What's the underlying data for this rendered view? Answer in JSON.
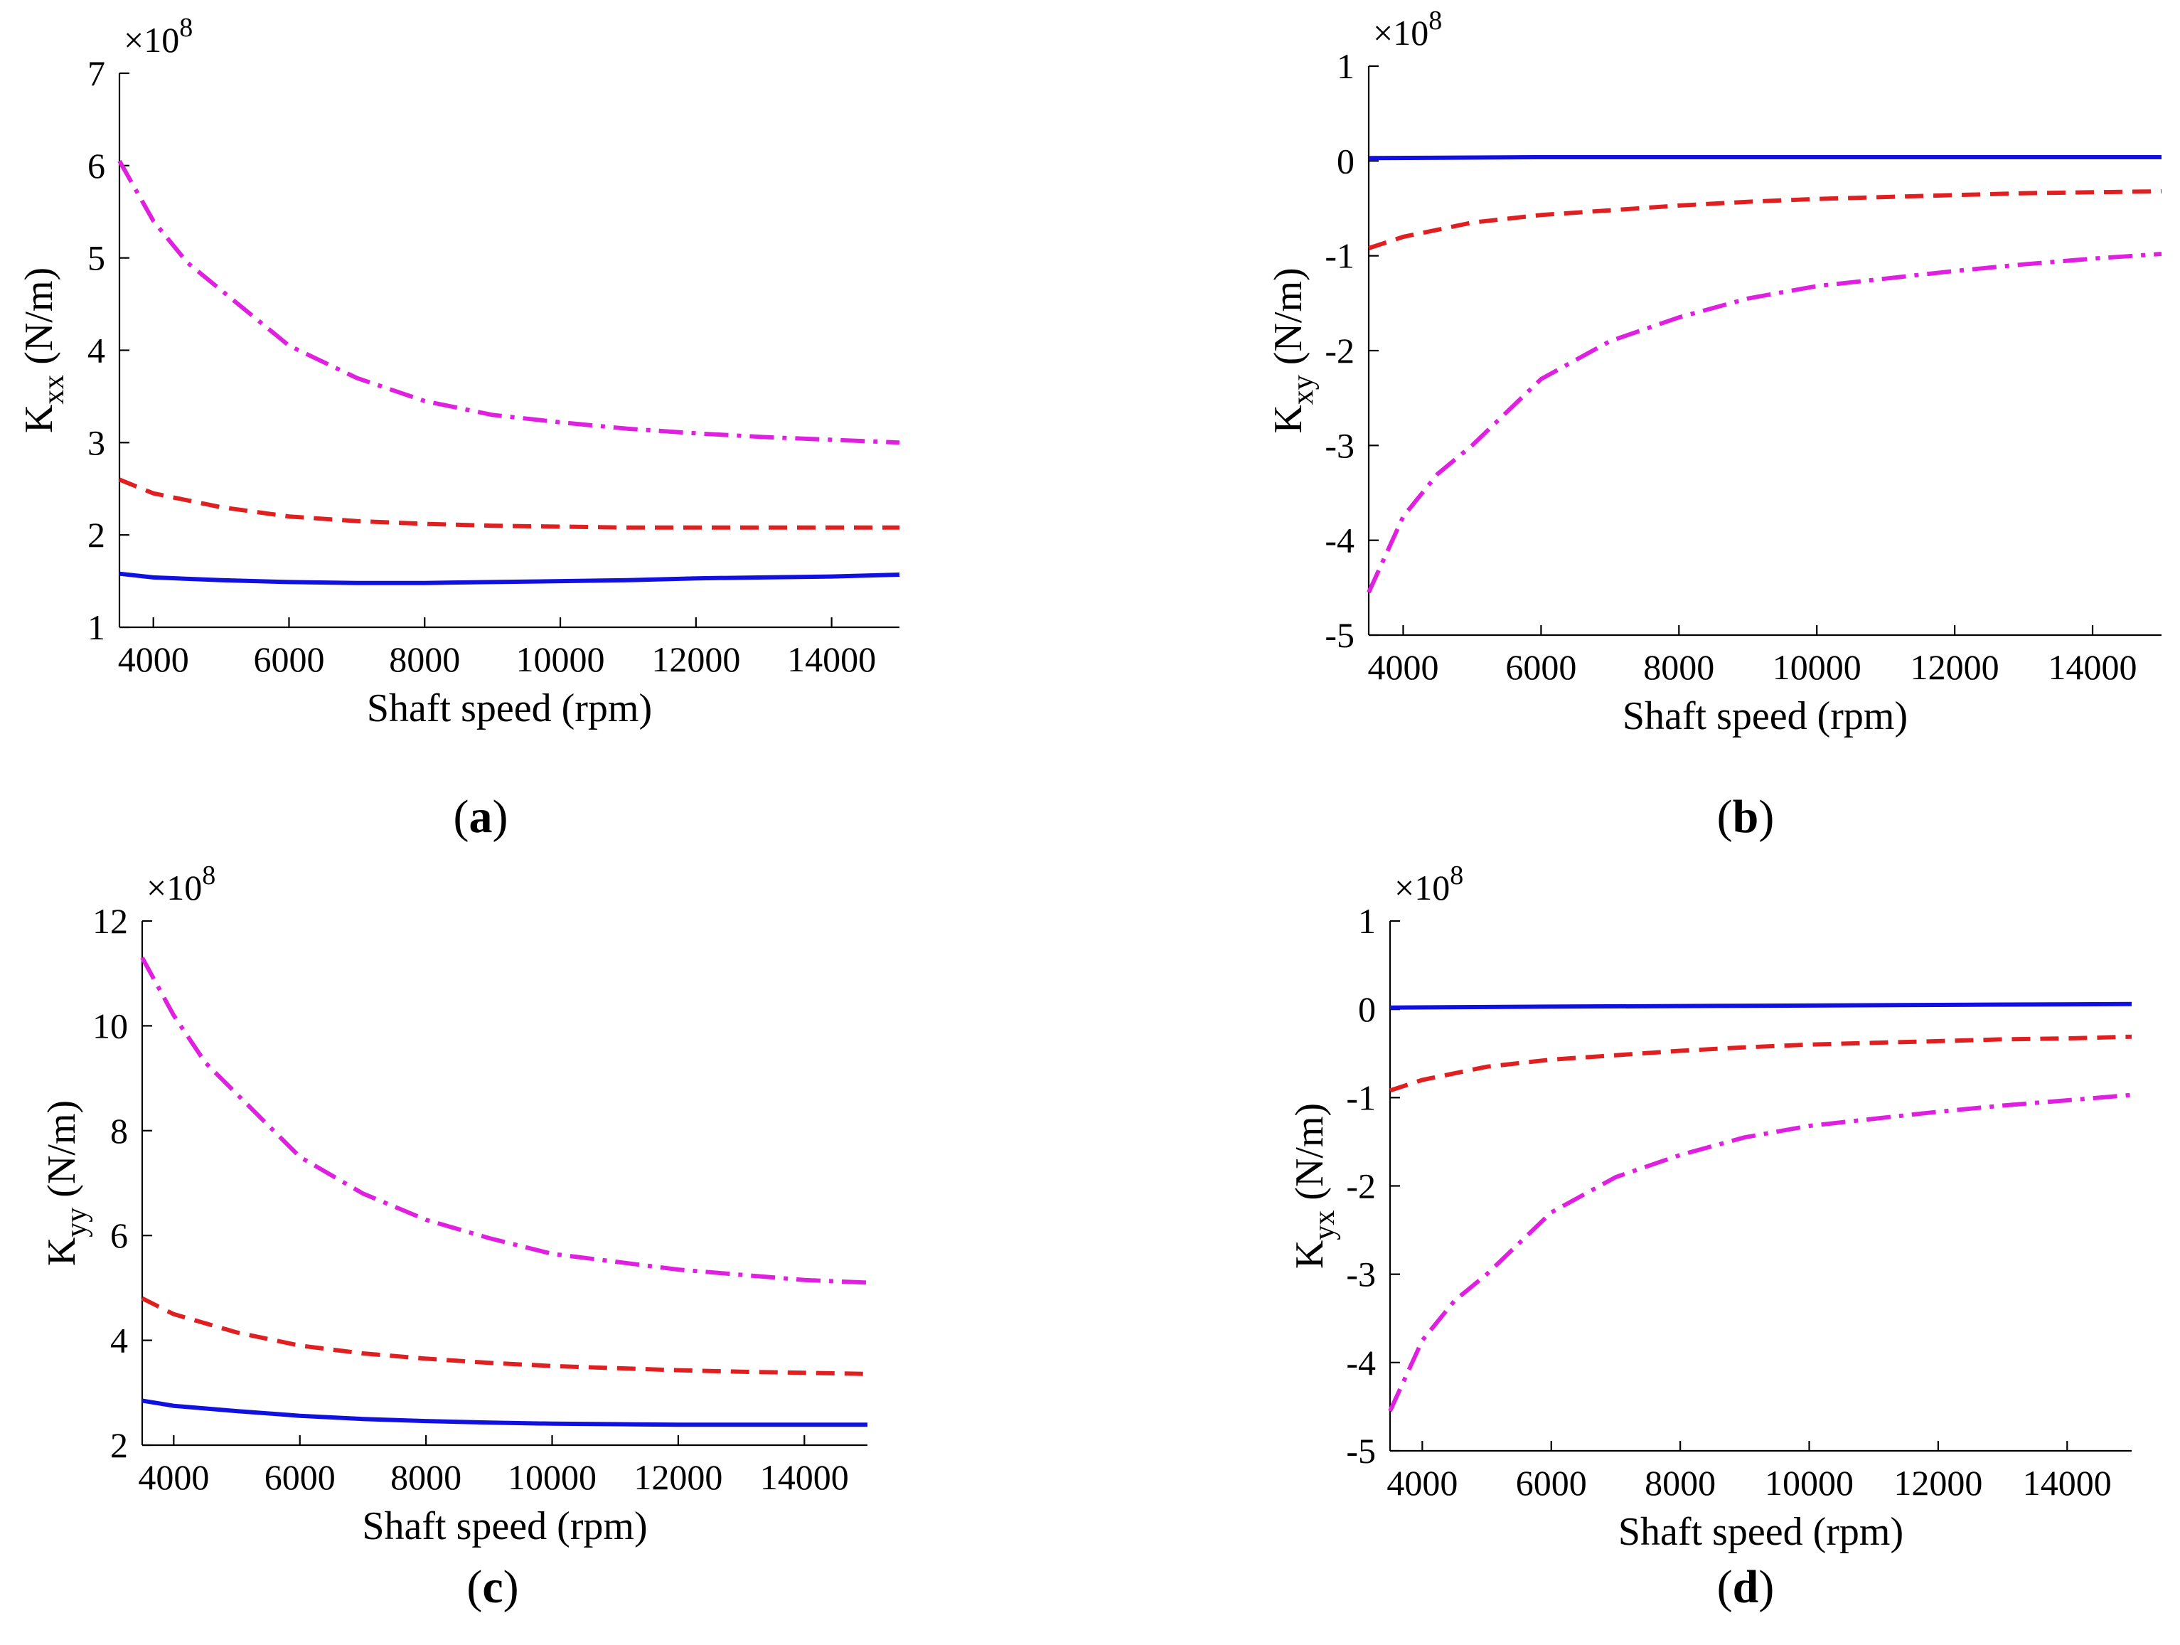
{
  "chart_data": [
    {
      "id": "a",
      "type": "line",
      "panel_label": "a",
      "title": "",
      "xlabel": "Shaft speed (rpm)",
      "ylabel_main": "K",
      "ylabel_sub": "xx",
      "ylabel_unit": " (N/m)",
      "y_exponent_base": "×10",
      "y_exponent_power": "8",
      "xlim": [
        3500,
        15000
      ],
      "ylim": [
        1,
        7
      ],
      "xticks": [
        4000,
        6000,
        8000,
        10000,
        12000,
        14000
      ],
      "yticks": [
        1,
        2,
        3,
        4,
        5,
        6,
        7
      ],
      "legend": "none",
      "series": [
        {
          "name": "solid",
          "color": "#1010e0",
          "dash": "solid",
          "x": [
            3500,
            4000,
            5000,
            6000,
            7000,
            8000,
            9000,
            10000,
            11000,
            12000,
            13000,
            14000,
            15000
          ],
          "y": [
            1.58,
            1.54,
            1.51,
            1.49,
            1.48,
            1.48,
            1.49,
            1.5,
            1.51,
            1.53,
            1.54,
            1.55,
            1.57
          ]
        },
        {
          "name": "dashed",
          "color": "#e02020",
          "dash": "dashed",
          "x": [
            3500,
            4000,
            5000,
            6000,
            7000,
            8000,
            9000,
            10000,
            11000,
            12000,
            13000,
            14000,
            15000
          ],
          "y": [
            2.6,
            2.45,
            2.3,
            2.2,
            2.15,
            2.12,
            2.1,
            2.09,
            2.08,
            2.08,
            2.08,
            2.08,
            2.08
          ]
        },
        {
          "name": "dash-dot",
          "color": "#e020e0",
          "dash": "dashdot",
          "x": [
            3500,
            4000,
            4500,
            5000,
            6000,
            7000,
            8000,
            9000,
            10000,
            11000,
            12000,
            13000,
            14000,
            15000
          ],
          "y": [
            6.05,
            5.4,
            4.95,
            4.65,
            4.05,
            3.7,
            3.45,
            3.3,
            3.22,
            3.15,
            3.1,
            3.06,
            3.03,
            3.0
          ]
        }
      ]
    },
    {
      "id": "b",
      "type": "line",
      "panel_label": "b",
      "title": "",
      "xlabel": "Shaft speed (rpm)",
      "ylabel_main": "K",
      "ylabel_sub": "xy",
      "ylabel_unit": " (N/m)",
      "y_exponent_base": "×10",
      "y_exponent_power": "8",
      "xlim": [
        3500,
        15000
      ],
      "ylim": [
        -5,
        1
      ],
      "xticks": [
        4000,
        6000,
        8000,
        10000,
        12000,
        14000
      ],
      "yticks": [
        -5,
        -4,
        -3,
        -2,
        -1,
        0,
        1
      ],
      "legend": "none",
      "series": [
        {
          "name": "solid",
          "color": "#1010e0",
          "dash": "solid",
          "x": [
            3500,
            6000,
            9000,
            12000,
            15000
          ],
          "y": [
            0.03,
            0.04,
            0.04,
            0.04,
            0.04
          ]
        },
        {
          "name": "dashed",
          "color": "#e02020",
          "dash": "dashed",
          "x": [
            3500,
            4000,
            5000,
            6000,
            7000,
            8000,
            9000,
            10000,
            11000,
            12000,
            13000,
            14000,
            15000
          ],
          "y": [
            -0.92,
            -0.8,
            -0.65,
            -0.57,
            -0.52,
            -0.47,
            -0.43,
            -0.4,
            -0.38,
            -0.36,
            -0.34,
            -0.33,
            -0.32
          ]
        },
        {
          "name": "dash-dot",
          "color": "#e020e0",
          "dash": "dashdot",
          "x": [
            3500,
            4000,
            4500,
            5000,
            6000,
            7000,
            8000,
            9000,
            10000,
            11000,
            12000,
            13000,
            14000,
            15000
          ],
          "y": [
            -4.55,
            -3.75,
            -3.3,
            -3.0,
            -2.3,
            -1.9,
            -1.65,
            -1.45,
            -1.32,
            -1.24,
            -1.16,
            -1.09,
            -1.03,
            -0.98
          ]
        }
      ]
    },
    {
      "id": "c",
      "type": "line",
      "panel_label": "c",
      "title": "",
      "xlabel": "Shaft speed (rpm)",
      "ylabel_main": "K",
      "ylabel_sub": "yy",
      "ylabel_unit": " (N/m)",
      "y_exponent_base": "×10",
      "y_exponent_power": "8",
      "xlim": [
        3500,
        15000
      ],
      "ylim": [
        2,
        12
      ],
      "xticks": [
        4000,
        6000,
        8000,
        10000,
        12000,
        14000
      ],
      "yticks": [
        2,
        4,
        6,
        8,
        10,
        12
      ],
      "legend": "none",
      "series": [
        {
          "name": "solid",
          "color": "#1010e0",
          "dash": "solid",
          "x": [
            3500,
            4000,
            5000,
            6000,
            7000,
            8000,
            9000,
            10000,
            11000,
            12000,
            13000,
            14000,
            15000
          ],
          "y": [
            2.85,
            2.75,
            2.65,
            2.56,
            2.5,
            2.46,
            2.43,
            2.41,
            2.4,
            2.39,
            2.39,
            2.39,
            2.39
          ]
        },
        {
          "name": "dashed",
          "color": "#e02020",
          "dash": "dashed",
          "x": [
            3500,
            4000,
            5000,
            6000,
            7000,
            8000,
            9000,
            10000,
            11000,
            12000,
            13000,
            14000,
            15000
          ],
          "y": [
            4.8,
            4.5,
            4.15,
            3.9,
            3.75,
            3.65,
            3.57,
            3.51,
            3.47,
            3.43,
            3.4,
            3.38,
            3.36
          ]
        },
        {
          "name": "dash-dot",
          "color": "#e020e0",
          "dash": "dashdot",
          "x": [
            3500,
            4000,
            4500,
            5000,
            6000,
            7000,
            8000,
            9000,
            10000,
            11000,
            12000,
            13000,
            14000,
            15000
          ],
          "y": [
            11.3,
            10.2,
            9.3,
            8.7,
            7.5,
            6.8,
            6.3,
            5.95,
            5.65,
            5.5,
            5.35,
            5.25,
            5.15,
            5.1
          ]
        }
      ]
    },
    {
      "id": "d",
      "type": "line",
      "panel_label": "d",
      "title": "",
      "xlabel": "Shaft speed (rpm)",
      "ylabel_main": "K",
      "ylabel_sub": "yx",
      "ylabel_unit": " (N/m)",
      "y_exponent_base": "×10",
      "y_exponent_power": "8",
      "xlim": [
        3500,
        15000
      ],
      "ylim": [
        -5,
        1
      ],
      "xticks": [
        4000,
        6000,
        8000,
        10000,
        12000,
        14000
      ],
      "yticks": [
        -5,
        -4,
        -3,
        -2,
        -1,
        0,
        1
      ],
      "legend": "none",
      "series": [
        {
          "name": "solid",
          "color": "#1010e0",
          "dash": "solid",
          "x": [
            3500,
            6000,
            9000,
            12000,
            15000
          ],
          "y": [
            0.02,
            0.03,
            0.04,
            0.05,
            0.06
          ]
        },
        {
          "name": "dashed",
          "color": "#e02020",
          "dash": "dashed",
          "x": [
            3500,
            4000,
            5000,
            6000,
            7000,
            8000,
            9000,
            10000,
            11000,
            12000,
            13000,
            14000,
            15000
          ],
          "y": [
            -0.92,
            -0.8,
            -0.65,
            -0.57,
            -0.52,
            -0.47,
            -0.43,
            -0.4,
            -0.38,
            -0.36,
            -0.34,
            -0.33,
            -0.31
          ]
        },
        {
          "name": "dash-dot",
          "color": "#e020e0",
          "dash": "dashdot",
          "x": [
            3500,
            4000,
            4500,
            5000,
            6000,
            7000,
            8000,
            9000,
            10000,
            11000,
            12000,
            13000,
            14000,
            15000
          ],
          "y": [
            -4.55,
            -3.75,
            -3.3,
            -3.0,
            -2.3,
            -1.9,
            -1.65,
            -1.45,
            -1.32,
            -1.24,
            -1.16,
            -1.09,
            -1.03,
            -0.97
          ]
        }
      ]
    }
  ]
}
